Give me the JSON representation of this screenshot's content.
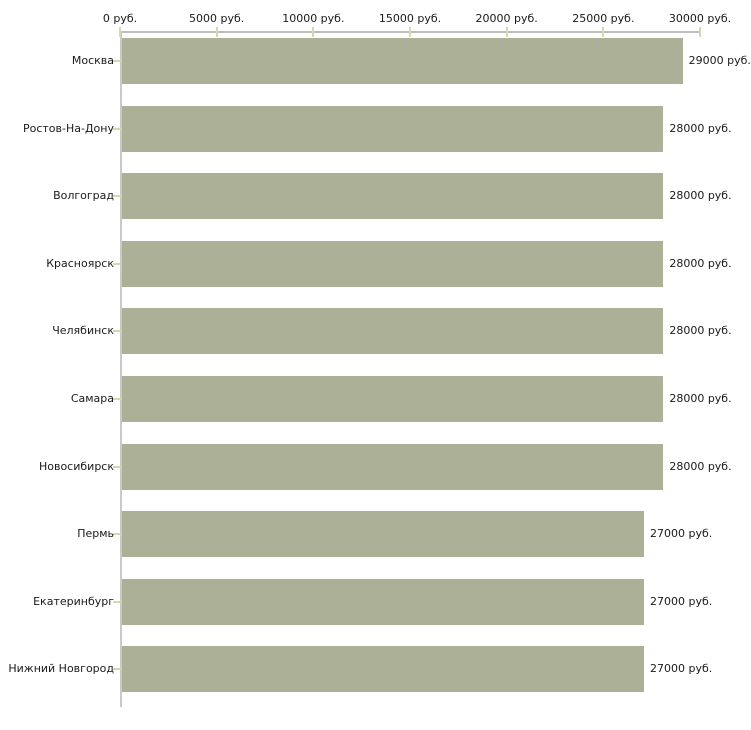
{
  "chart_data": {
    "type": "bar",
    "orientation": "horizontal",
    "title": "",
    "xlabel": "",
    "ylabel": "",
    "categories": [
      "Москва",
      "Ростов-На-Дону",
      "Волгоград",
      "Красноярск",
      "Челябинск",
      "Самара",
      "Новосибирск",
      "Пермь",
      "Екатеринбург",
      "Нижний Новгород"
    ],
    "values": [
      29000,
      28000,
      28000,
      28000,
      28000,
      28000,
      28000,
      27000,
      27000,
      27000
    ],
    "bar_labels": [
      "29000 руб.",
      "28000 руб.",
      "28000 руб.",
      "28000 руб.",
      "28000 руб.",
      "28000 руб.",
      "28000 руб.",
      "27000 руб.",
      "27000 руб.",
      "27000 руб."
    ],
    "x_ticks": [
      0,
      5000,
      10000,
      15000,
      20000,
      25000,
      30000
    ],
    "x_tick_labels": [
      "0 руб.",
      "5000 руб.",
      "10000 руб.",
      "15000 руб.",
      "20000 руб.",
      "25000 руб.",
      "30000 руб."
    ],
    "xlim": [
      0,
      30000
    ],
    "grid": false,
    "legend": "none",
    "colors": {
      "bar": "#abb096",
      "axis_line": "#bdbdbd",
      "tick_mark": "#d8d8ad",
      "text": "#1a1a1a",
      "background": "#ffffff"
    }
  }
}
